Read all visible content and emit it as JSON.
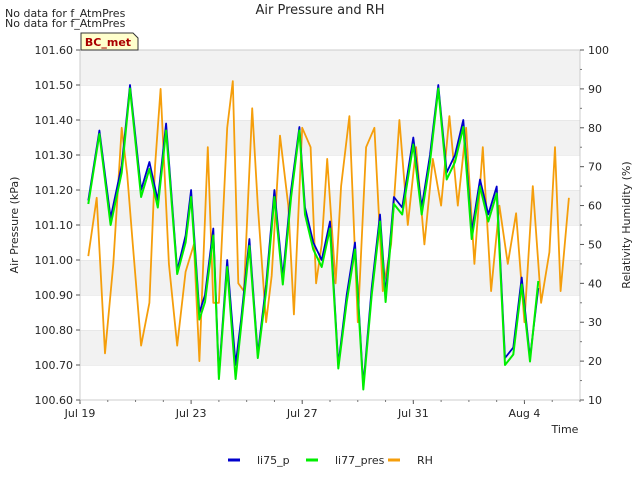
{
  "notes": [
    "No data for f_AtmPres",
    "No data for f_AtmPres"
  ],
  "chart_data": {
    "type": "line",
    "title": "Air Pressure and RH",
    "xlabel": "Time",
    "ylabel_left": "Air Pressure (kPa)",
    "ylabel_right": "Relativity Humidity (%)",
    "site_label": "BC_met",
    "x_ticks": [
      {
        "day": 0,
        "label": "Jul 19"
      },
      {
        "day": 4,
        "label": "Jul 23"
      },
      {
        "day": 8,
        "label": "Jul 27"
      },
      {
        "day": 12,
        "label": "Jul 31"
      },
      {
        "day": 16,
        "label": "Aug 4"
      }
    ],
    "xlim": [
      0,
      18
    ],
    "ylim_left": [
      100.6,
      101.6
    ],
    "yticks_left": [
      "100.60",
      "100.70",
      "100.80",
      "100.90",
      "101.00",
      "101.10",
      "101.20",
      "101.30",
      "101.40",
      "101.50",
      "101.60"
    ],
    "ylim_right": [
      10,
      100
    ],
    "yticks_right": [
      "10",
      "20",
      "30",
      "40",
      "50",
      "60",
      "70",
      "80",
      "90",
      "100"
    ],
    "grid": "horizontal bands",
    "legend_position": "bottom-center",
    "series": [
      {
        "name": "li75_p",
        "axis": "left",
        "color": "#0000cc",
        "x": [
          0.3,
          0.7,
          1.1,
          1.5,
          1.8,
          2.2,
          2.5,
          2.8,
          3.1,
          3.5,
          3.8,
          4.0,
          4.3,
          4.5,
          4.8,
          5.0,
          5.3,
          5.6,
          5.8,
          6.1,
          6.4,
          6.7,
          7.0,
          7.3,
          7.6,
          7.9,
          8.1,
          8.4,
          8.7,
          9.0,
          9.3,
          9.6,
          9.9,
          10.2,
          10.5,
          10.8,
          11.0,
          11.3,
          11.6,
          12.0,
          12.3,
          12.6,
          12.9,
          13.2,
          13.5,
          13.8,
          14.1,
          14.4,
          14.7,
          15.0,
          15.3,
          15.6,
          15.9,
          16.2,
          16.5,
          16.8,
          17.1,
          17.4,
          17.7
        ],
        "y": [
          101.17,
          101.37,
          101.12,
          101.27,
          101.5,
          101.2,
          101.28,
          101.17,
          101.39,
          100.97,
          101.07,
          101.2,
          100.85,
          100.9,
          101.09,
          100.67,
          101.0,
          100.7,
          100.83,
          101.06,
          100.73,
          100.93,
          101.2,
          100.95,
          101.2,
          101.38,
          101.15,
          101.05,
          101.0,
          101.11,
          100.7,
          100.9,
          101.05,
          100.64,
          100.92,
          101.13,
          100.9,
          101.18,
          101.15,
          101.35,
          101.15,
          101.3,
          101.5,
          101.25,
          101.3,
          101.4,
          101.08,
          101.23,
          101.13,
          101.21,
          100.72,
          100.75,
          100.95,
          100.72,
          100.92,
          null,
          null,
          null,
          null
        ]
      },
      {
        "name": "li77_pres",
        "axis": "left",
        "color": "#00ee00",
        "x": [
          0.3,
          0.7,
          1.1,
          1.5,
          1.8,
          2.2,
          2.5,
          2.8,
          3.1,
          3.5,
          3.8,
          4.0,
          4.3,
          4.5,
          4.8,
          5.0,
          5.3,
          5.6,
          5.8,
          6.1,
          6.4,
          6.7,
          7.0,
          7.3,
          7.6,
          7.9,
          8.1,
          8.4,
          8.7,
          9.0,
          9.3,
          9.6,
          9.9,
          10.2,
          10.5,
          10.8,
          11.0,
          11.3,
          11.6,
          12.0,
          12.3,
          12.6,
          12.9,
          13.2,
          13.5,
          13.8,
          14.1,
          14.4,
          14.7,
          15.0,
          15.3,
          15.6,
          15.9,
          16.2,
          16.5,
          16.8,
          17.1,
          17.4,
          17.7
        ],
        "y": [
          101.16,
          101.36,
          101.1,
          101.25,
          101.49,
          101.18,
          101.26,
          101.15,
          101.37,
          100.96,
          101.05,
          101.18,
          100.83,
          100.88,
          101.07,
          100.66,
          100.98,
          100.66,
          100.81,
          101.04,
          100.72,
          100.91,
          101.18,
          100.93,
          101.18,
          101.37,
          101.13,
          101.03,
          100.98,
          101.09,
          100.69,
          100.88,
          101.03,
          100.63,
          100.9,
          101.11,
          100.88,
          101.16,
          101.13,
          101.33,
          101.13,
          101.28,
          101.49,
          101.23,
          101.28,
          101.38,
          101.06,
          101.21,
          101.11,
          101.19,
          100.7,
          100.73,
          100.93,
          100.71,
          100.94,
          null,
          null,
          null,
          null
        ]
      },
      {
        "name": "RH",
        "axis": "right",
        "color": "#f59e0b",
        "x": [
          0.3,
          0.6,
          0.9,
          1.2,
          1.5,
          1.7,
          1.9,
          2.2,
          2.5,
          2.7,
          2.9,
          3.2,
          3.5,
          3.8,
          4.1,
          4.3,
          4.6,
          4.8,
          5.0,
          5.3,
          5.5,
          5.7,
          5.9,
          6.2,
          6.4,
          6.7,
          6.9,
          7.2,
          7.5,
          7.7,
          8.0,
          8.3,
          8.5,
          8.7,
          8.9,
          9.2,
          9.4,
          9.7,
          10.0,
          10.3,
          10.6,
          10.9,
          11.2,
          11.5,
          11.8,
          12.1,
          12.4,
          12.7,
          13.0,
          13.3,
          13.6,
          13.9,
          14.2,
          14.5,
          14.8,
          15.1,
          15.4,
          15.7,
          16.0,
          16.3,
          16.6,
          16.9,
          17.1,
          17.3,
          17.6
        ],
        "y": [
          47,
          62,
          22,
          45,
          80,
          68,
          50,
          24,
          35,
          70,
          90,
          45,
          24,
          43,
          50,
          20,
          75,
          35,
          35,
          80,
          92,
          40,
          38,
          85,
          60,
          30,
          42,
          78,
          60,
          32,
          80,
          75,
          40,
          50,
          72,
          40,
          65,
          83,
          30,
          75,
          80,
          38,
          50,
          82,
          55,
          75,
          50,
          72,
          60,
          83,
          60,
          80,
          45,
          75,
          38,
          60,
          45,
          58,
          30,
          65,
          35,
          48,
          75,
          38,
          62
        ]
      }
    ]
  }
}
